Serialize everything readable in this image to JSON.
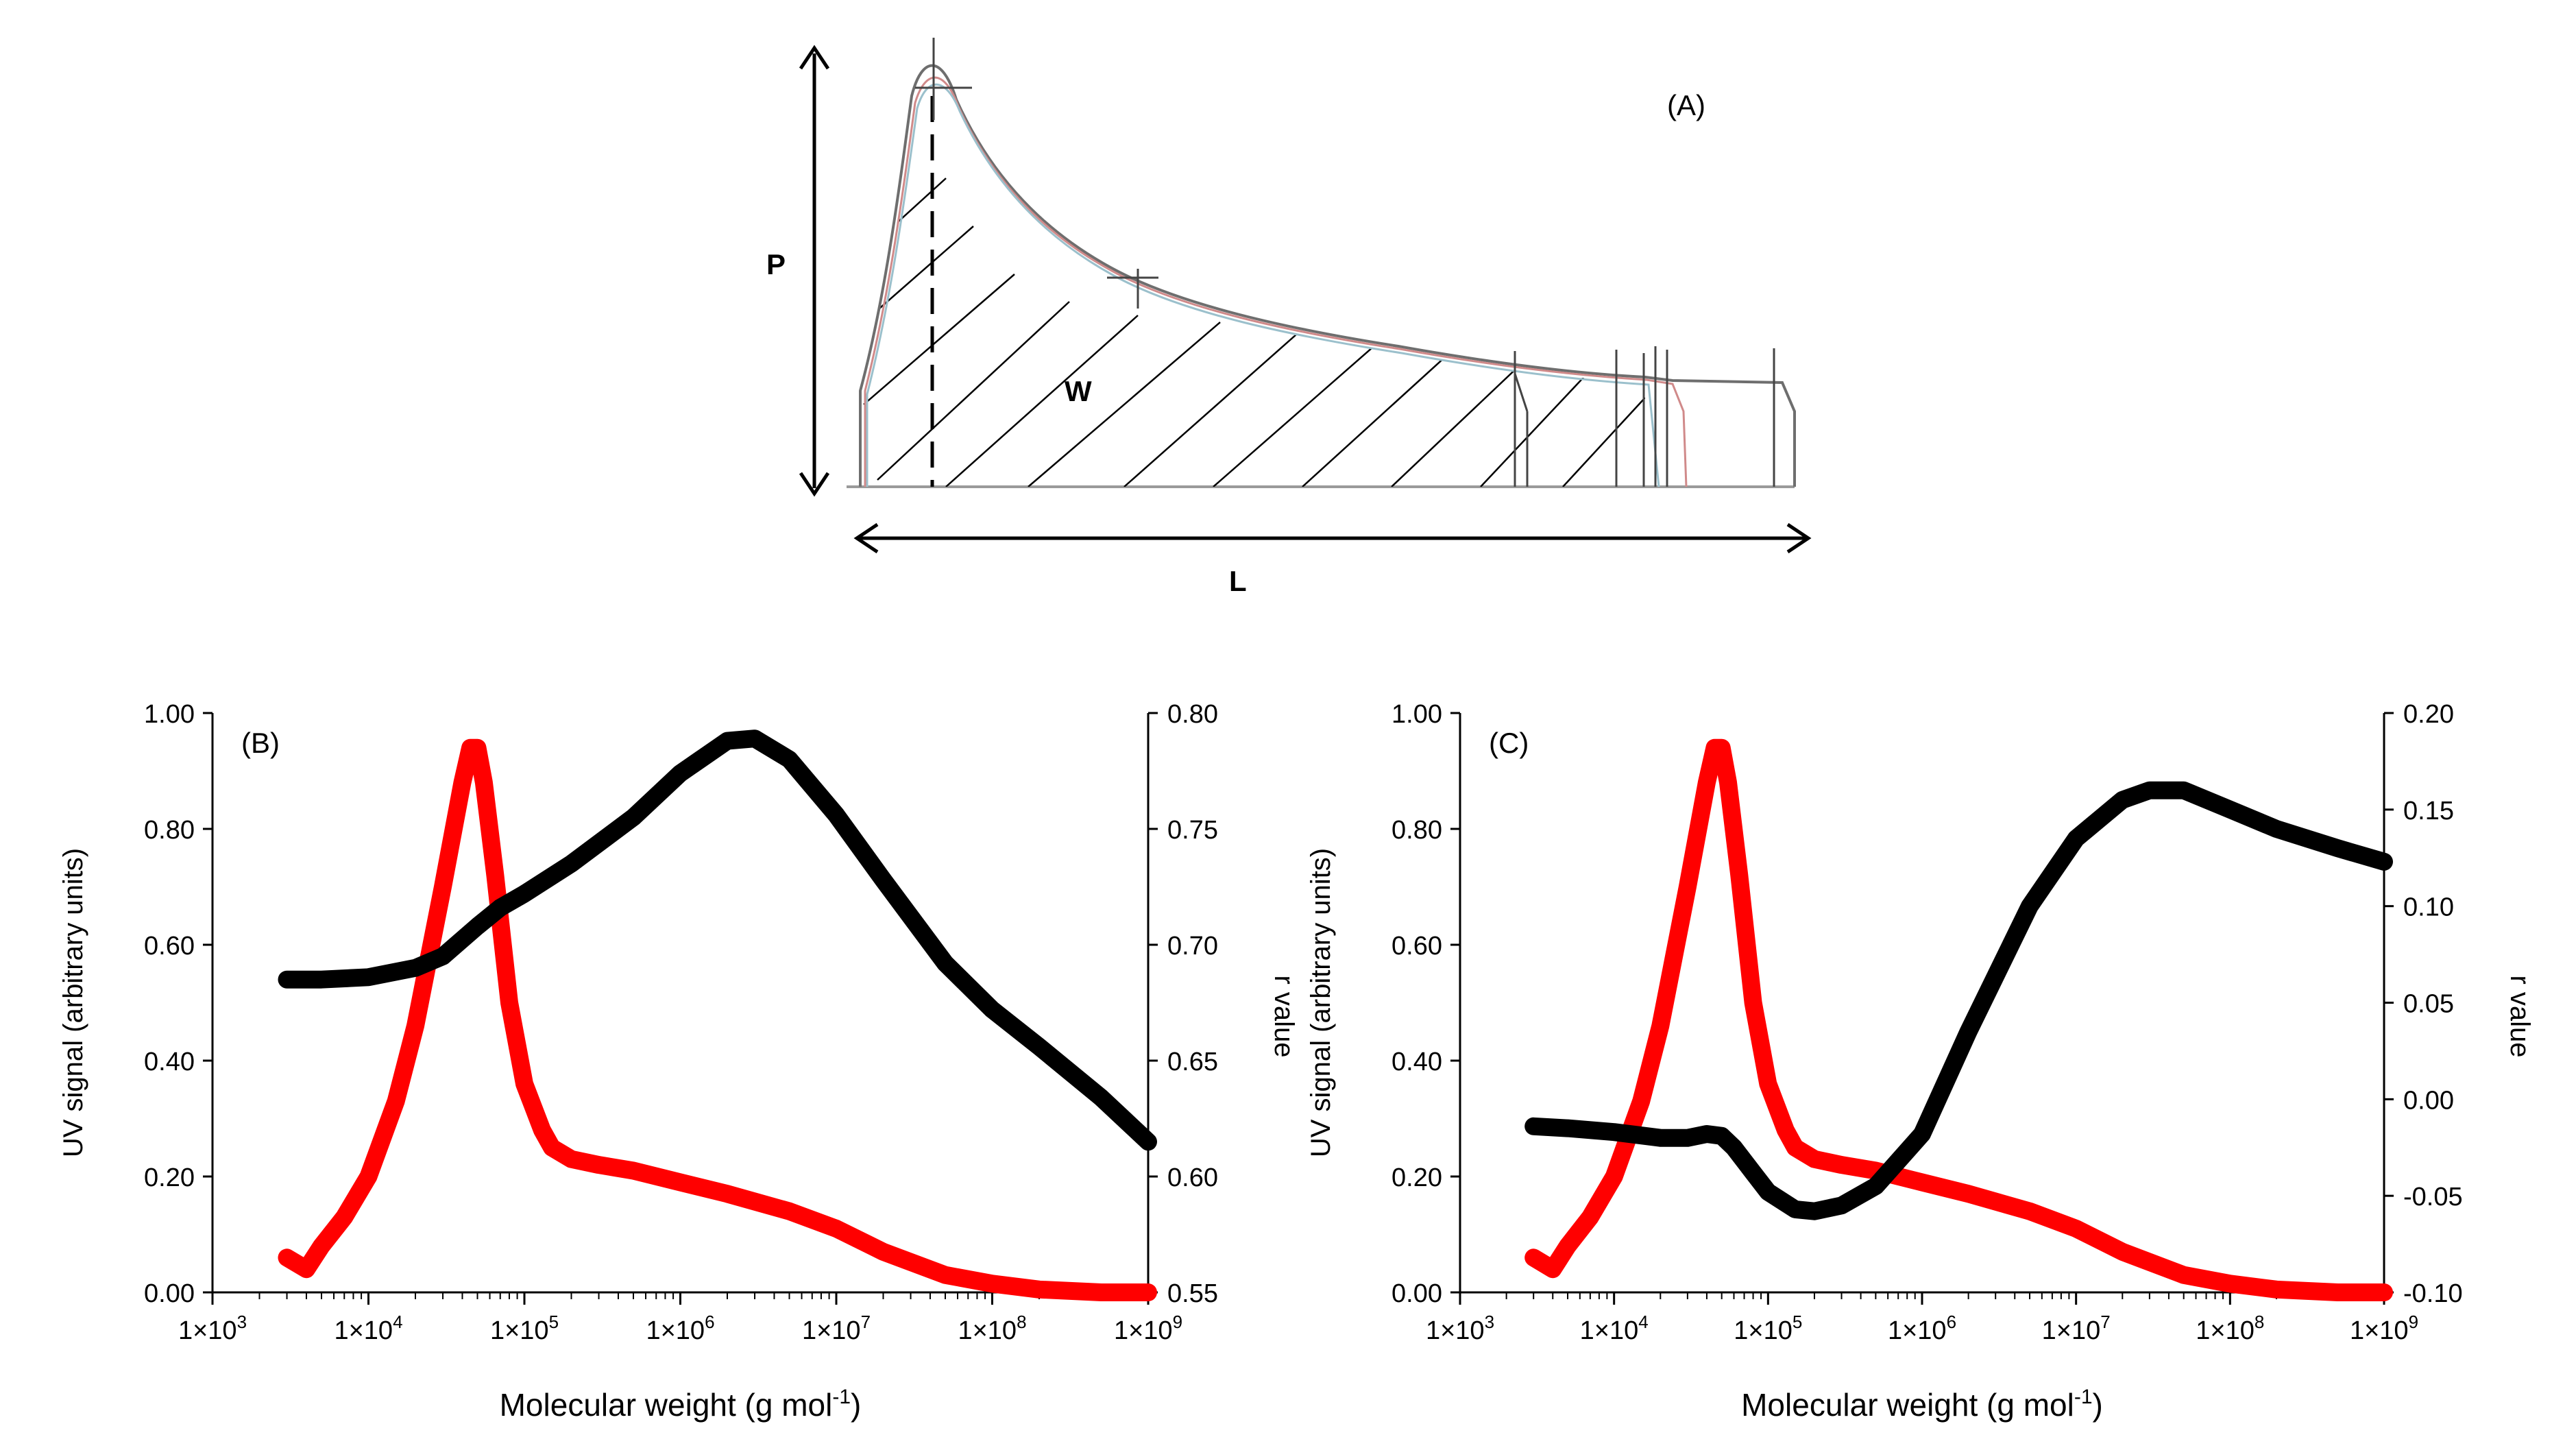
{
  "panel_a": {
    "label": "(A)",
    "p_label": "P",
    "w_label": "W",
    "l_label": "L"
  },
  "chart_data": [
    {
      "type": "line",
      "panel_label": "(B)",
      "title": "",
      "xlabel": "Molecular weight (g mol",
      "xlabel_sup": "-1",
      "xlabel_end": ")",
      "x_scale": "log",
      "xlim": [
        1000,
        1000000000
      ],
      "x_ticks": [
        1000,
        10000,
        100000,
        1000000,
        10000000,
        100000000,
        1000000000
      ],
      "x_tick_labels": [
        {
          "base": "1×10",
          "exp": "3"
        },
        {
          "base": "1×10",
          "exp": "4"
        },
        {
          "base": "1×10",
          "exp": "5"
        },
        {
          "base": "1×10",
          "exp": "6"
        },
        {
          "base": "1×10",
          "exp": "7"
        },
        {
          "base": "1×10",
          "exp": "8"
        },
        {
          "base": "1×10",
          "exp": "9"
        }
      ],
      "ylabel": "UV signal (arbitrary  units)",
      "ylim": [
        0,
        1
      ],
      "y_tick_labels": [
        "0.00",
        "0.20",
        "0.40",
        "0.60",
        "0.80",
        "1.00"
      ],
      "y2label": "r value",
      "y2lim": [
        0.55,
        0.8
      ],
      "y2_tick_labels": [
        "0.55",
        "0.60",
        "0.65",
        "0.70",
        "0.75",
        "0.80"
      ],
      "series": [
        {
          "axis": "left",
          "color": "#ff0000",
          "x": [
            3000,
            4000,
            5000,
            7000,
            10000,
            15000,
            20000,
            30000,
            40000,
            45000,
            50000,
            55000,
            65000,
            80000,
            100000,
            130000,
            150000,
            200000,
            300000,
            500000,
            1000000,
            2000000,
            5000000,
            10000000,
            20000000,
            50000000,
            100000000,
            200000000,
            500000000,
            1000000000
          ],
          "values": [
            0.06,
            0.04,
            0.08,
            0.13,
            0.2,
            0.33,
            0.46,
            0.7,
            0.88,
            0.94,
            0.94,
            0.88,
            0.72,
            0.5,
            0.36,
            0.28,
            0.25,
            0.23,
            0.22,
            0.21,
            0.19,
            0.17,
            0.14,
            0.11,
            0.07,
            0.03,
            0.015,
            0.005,
            0.0,
            0.0
          ]
        },
        {
          "axis": "right",
          "color": "#000000",
          "x": [
            3000,
            5000,
            10000,
            20000,
            30000,
            50000,
            70000,
            100000,
            200000,
            500000,
            1000000,
            2000000,
            3000000,
            5000000,
            10000000,
            20000000,
            50000000,
            100000000,
            200000000,
            500000000,
            1000000000
          ],
          "values": [
            0.685,
            0.685,
            0.686,
            0.69,
            0.695,
            0.708,
            0.716,
            0.722,
            0.735,
            0.755,
            0.774,
            0.788,
            0.789,
            0.78,
            0.756,
            0.728,
            0.692,
            0.672,
            0.656,
            0.634,
            0.615
          ]
        }
      ]
    },
    {
      "type": "line",
      "panel_label": "(C)",
      "title": "",
      "xlabel": "Molecular weight (g mol",
      "xlabel_sup": "-1",
      "xlabel_end": ")",
      "x_scale": "log",
      "xlim": [
        1000,
        1000000000
      ],
      "x_ticks": [
        1000,
        10000,
        100000,
        1000000,
        10000000,
        100000000,
        1000000000
      ],
      "x_tick_labels": [
        {
          "base": "1×10",
          "exp": "3"
        },
        {
          "base": "1×10",
          "exp": "4"
        },
        {
          "base": "1×10",
          "exp": "5"
        },
        {
          "base": "1×10",
          "exp": "6"
        },
        {
          "base": "1×10",
          "exp": "7"
        },
        {
          "base": "1×10",
          "exp": "8"
        },
        {
          "base": "1×10",
          "exp": "9"
        }
      ],
      "ylabel": "UV signal (arbitrary  units)",
      "ylim": [
        0,
        1
      ],
      "y_tick_labels": [
        "0.00",
        "0.20",
        "0.40",
        "0.60",
        "0.80",
        "1.00"
      ],
      "y2label": "r value",
      "y2lim": [
        -0.1,
        0.2
      ],
      "y2_tick_labels": [
        "-0.10",
        "-0.05",
        "0.00",
        "0.05",
        "0.10",
        "0.15",
        "0.20"
      ],
      "series": [
        {
          "axis": "left",
          "color": "#ff0000",
          "x": [
            3000,
            4000,
            5000,
            7000,
            10000,
            15000,
            20000,
            30000,
            40000,
            45000,
            50000,
            55000,
            65000,
            80000,
            100000,
            130000,
            150000,
            200000,
            300000,
            500000,
            1000000,
            2000000,
            5000000,
            10000000,
            20000000,
            50000000,
            100000000,
            200000000,
            500000000,
            1000000000
          ],
          "values": [
            0.06,
            0.04,
            0.08,
            0.13,
            0.2,
            0.33,
            0.46,
            0.7,
            0.88,
            0.94,
            0.94,
            0.88,
            0.72,
            0.5,
            0.36,
            0.28,
            0.25,
            0.23,
            0.22,
            0.21,
            0.19,
            0.17,
            0.14,
            0.11,
            0.07,
            0.03,
            0.015,
            0.005,
            0.0,
            0.0
          ]
        },
        {
          "axis": "right",
          "color": "#000000",
          "x": [
            3000,
            5000,
            10000,
            20000,
            30000,
            40000,
            50000,
            60000,
            80000,
            100000,
            150000,
            200000,
            300000,
            500000,
            1000000,
            2000000,
            5000000,
            10000000,
            20000000,
            30000000,
            50000000,
            100000000,
            200000000,
            500000000,
            1000000000
          ],
          "values": [
            -0.014,
            -0.015,
            -0.017,
            -0.02,
            -0.02,
            -0.018,
            -0.019,
            -0.025,
            -0.038,
            -0.048,
            -0.057,
            -0.058,
            -0.055,
            -0.045,
            -0.018,
            0.035,
            0.1,
            0.135,
            0.155,
            0.16,
            0.16,
            0.15,
            0.14,
            0.13,
            0.123
          ]
        }
      ]
    }
  ]
}
